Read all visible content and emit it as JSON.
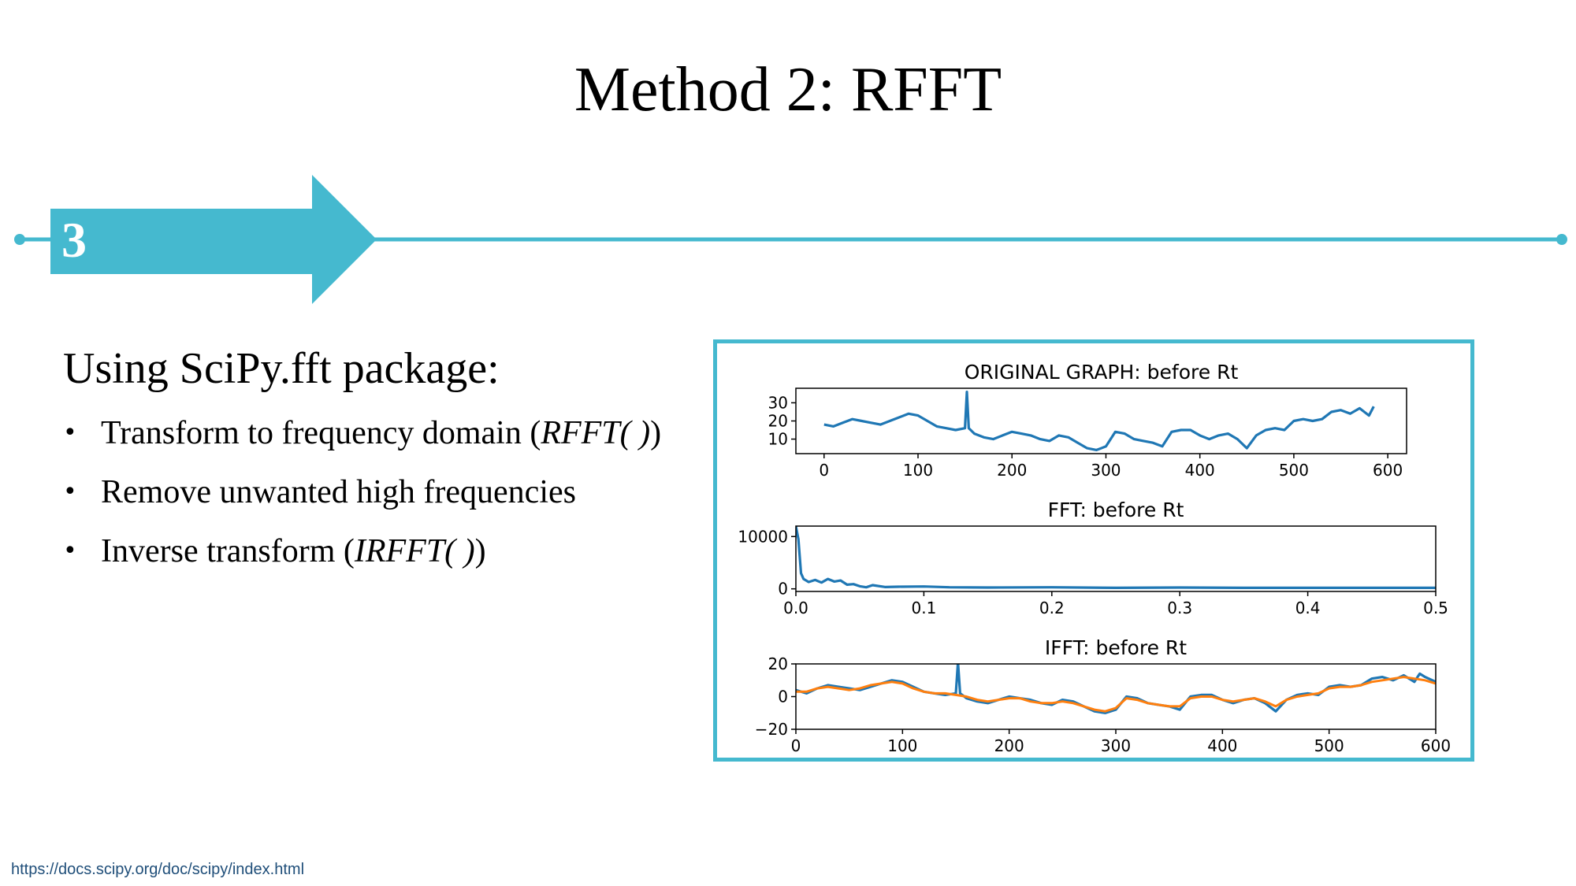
{
  "slide": {
    "title": "Method 2: RFFT",
    "step_number": "3",
    "accent_color": "#45b9cf",
    "section_heading": "Using SciPy.fft package:",
    "bullets": [
      {
        "text": "Transform to frequency domain (",
        "math": "RFFT( )",
        "suffix": ")"
      },
      {
        "text": "Remove unwanted high frequencies",
        "math": "",
        "suffix": ""
      },
      {
        "text": "Inverse transform (",
        "math": "IRFFT( )",
        "suffix": ")"
      }
    ],
    "bullet_symbol": "•",
    "source_link": "https://docs.scipy.org/doc/scipy/index.html"
  },
  "chart_data": [
    {
      "type": "line",
      "title": "ORIGINAL GRAPH: before Rt",
      "xlim": [
        -30,
        620
      ],
      "ylim": [
        2,
        38
      ],
      "xticks": [
        0,
        100,
        200,
        300,
        400,
        500,
        600
      ],
      "yticks": [
        10,
        20,
        30
      ],
      "series": [
        {
          "color": "#1f77b4",
          "x": [
            0,
            10,
            20,
            30,
            40,
            50,
            60,
            70,
            80,
            90,
            100,
            110,
            120,
            130,
            140,
            150,
            152,
            154,
            156,
            160,
            170,
            180,
            190,
            200,
            210,
            220,
            230,
            240,
            250,
            260,
            270,
            280,
            290,
            300,
            310,
            320,
            330,
            340,
            350,
            360,
            370,
            380,
            390,
            400,
            410,
            420,
            430,
            440,
            450,
            460,
            470,
            480,
            490,
            500,
            510,
            520,
            530,
            540,
            550,
            560,
            570,
            580,
            585
          ],
          "y": [
            18,
            17,
            19,
            21,
            20,
            19,
            18,
            20,
            22,
            24,
            23,
            20,
            17,
            16,
            15,
            16,
            36,
            16,
            15,
            13,
            11,
            10,
            12,
            14,
            13,
            12,
            10,
            9,
            12,
            11,
            8,
            5,
            4,
            6,
            14,
            13,
            10,
            9,
            8,
            6,
            14,
            15,
            15,
            12,
            10,
            12,
            13,
            10,
            5,
            12,
            15,
            16,
            15,
            20,
            21,
            20,
            21,
            25,
            26,
            24,
            27,
            23,
            28
          ]
        }
      ]
    },
    {
      "type": "line",
      "title": "FFT: before Rt",
      "xlim": [
        0,
        0.5
      ],
      "ylim": [
        -500,
        12000
      ],
      "xticks": [
        0.0,
        0.1,
        0.2,
        0.3,
        0.4,
        0.5
      ],
      "xtick_labels": [
        "0.0",
        "0.1",
        "0.2",
        "0.3",
        "0.4",
        "0.5"
      ],
      "yticks": [
        0,
        10000
      ],
      "series": [
        {
          "color": "#1f77b4",
          "x": [
            0,
            0.002,
            0.004,
            0.006,
            0.01,
            0.015,
            0.02,
            0.025,
            0.03,
            0.035,
            0.04,
            0.045,
            0.05,
            0.055,
            0.06,
            0.07,
            0.08,
            0.1,
            0.12,
            0.15,
            0.2,
            0.25,
            0.3,
            0.35,
            0.4,
            0.45,
            0.5
          ],
          "y": [
            12000,
            9500,
            3000,
            1900,
            1300,
            1700,
            1200,
            1900,
            1400,
            1600,
            800,
            900,
            500,
            300,
            700,
            350,
            400,
            450,
            300,
            250,
            300,
            200,
            250,
            200,
            200,
            200,
            200
          ]
        }
      ]
    },
    {
      "type": "line",
      "title": "IFFT: before Rt",
      "xlim": [
        0,
        600
      ],
      "ylim": [
        -20,
        20
      ],
      "xticks": [
        0,
        100,
        200,
        300,
        400,
        500,
        600
      ],
      "yticks": [
        -20,
        0,
        20
      ],
      "ytick_labels": [
        "−20",
        "0",
        "20"
      ],
      "series": [
        {
          "color": "#1f77b4",
          "x": [
            0,
            10,
            20,
            30,
            40,
            50,
            60,
            70,
            80,
            90,
            100,
            110,
            120,
            130,
            140,
            150,
            152,
            154,
            156,
            160,
            170,
            180,
            190,
            200,
            210,
            220,
            230,
            240,
            250,
            260,
            270,
            280,
            290,
            300,
            310,
            320,
            330,
            340,
            350,
            360,
            370,
            380,
            390,
            400,
            410,
            420,
            430,
            440,
            450,
            460,
            470,
            480,
            490,
            500,
            510,
            520,
            530,
            540,
            550,
            560,
            570,
            580,
            585,
            590,
            600
          ],
          "y": [
            4,
            2,
            5,
            7,
            6,
            5,
            4,
            6,
            8,
            10,
            9,
            6,
            3,
            2,
            1,
            2,
            21,
            2,
            1,
            -1,
            -3,
            -4,
            -2,
            0,
            -1,
            -2,
            -4,
            -5,
            -2,
            -3,
            -6,
            -9,
            -10,
            -8,
            0,
            -1,
            -4,
            -5,
            -6,
            -8,
            0,
            1,
            1,
            -2,
            -4,
            -2,
            -1,
            -4,
            -9,
            -2,
            1,
            2,
            1,
            6,
            7,
            6,
            7,
            11,
            12,
            10,
            13,
            9,
            14,
            12,
            9
          ]
        },
        {
          "color": "#ff7f0e",
          "x": [
            0,
            10,
            20,
            30,
            40,
            50,
            60,
            70,
            80,
            90,
            100,
            110,
            120,
            130,
            140,
            150,
            160,
            170,
            180,
            190,
            200,
            210,
            220,
            230,
            240,
            250,
            260,
            270,
            280,
            290,
            300,
            310,
            320,
            330,
            340,
            350,
            360,
            370,
            380,
            390,
            400,
            410,
            420,
            430,
            440,
            450,
            460,
            470,
            480,
            490,
            500,
            510,
            520,
            530,
            540,
            550,
            560,
            570,
            580,
            590,
            600
          ],
          "y": [
            3,
            3,
            5,
            6,
            5,
            4,
            5,
            7,
            8,
            9,
            8,
            5,
            3,
            2,
            2,
            1,
            0,
            -2,
            -3,
            -2,
            -1,
            -1,
            -3,
            -4,
            -4,
            -3,
            -4,
            -6,
            -8,
            -9,
            -7,
            -1,
            -2,
            -4,
            -5,
            -6,
            -6,
            -1,
            0,
            0,
            -2,
            -3,
            -2,
            -1,
            -3,
            -6,
            -2,
            0,
            1,
            2,
            5,
            6,
            6,
            7,
            9,
            10,
            11,
            12,
            11,
            10,
            8
          ]
        }
      ]
    }
  ]
}
